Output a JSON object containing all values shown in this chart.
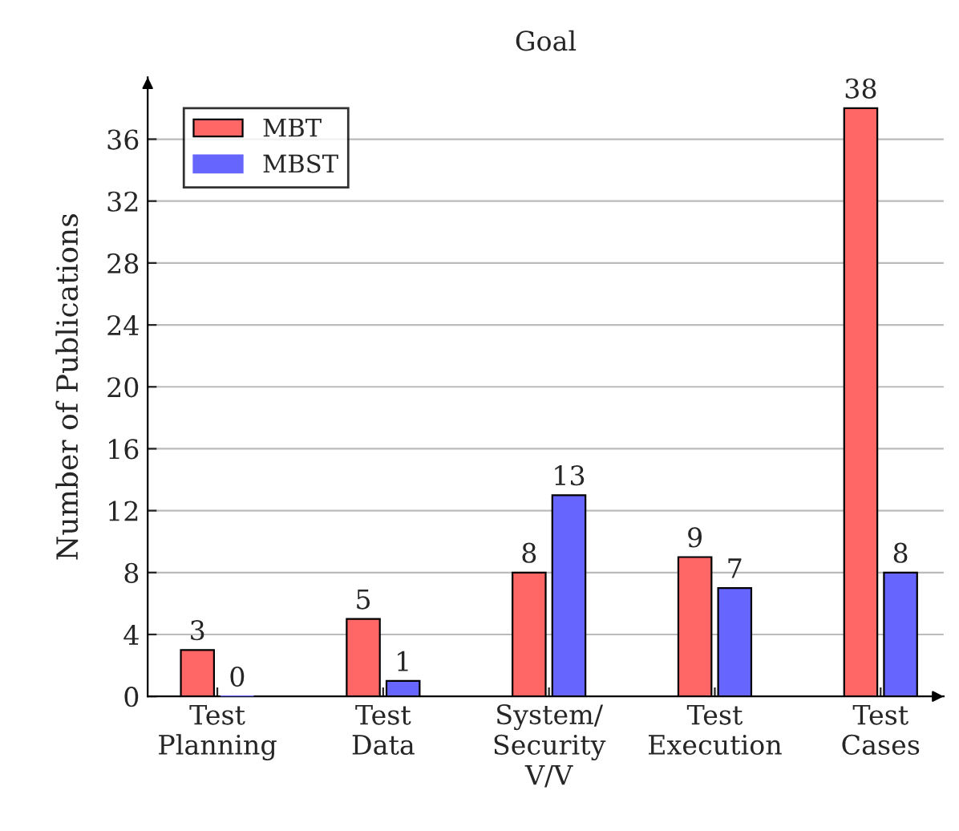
{
  "chart_data": {
    "type": "bar",
    "title": "Goal",
    "ylabel": "Number of Publications",
    "categories": [
      "Test\nPlanning",
      "Test\nData",
      "System/\nSecurity\nV/V",
      "Test\nExecution",
      "Test\nCases"
    ],
    "series": [
      {
        "name": "MBT",
        "color": "#ff6666",
        "values": [
          3,
          5,
          8,
          9,
          38
        ]
      },
      {
        "name": "MBST",
        "color": "#6666ff",
        "values": [
          0,
          1,
          13,
          7,
          8
        ]
      }
    ],
    "ylim": [
      0,
      40
    ],
    "yticks": [
      0,
      4,
      8,
      12,
      16,
      20,
      24,
      28,
      32,
      36
    ],
    "grid": "y",
    "legend": "top left",
    "data_labels": true
  }
}
